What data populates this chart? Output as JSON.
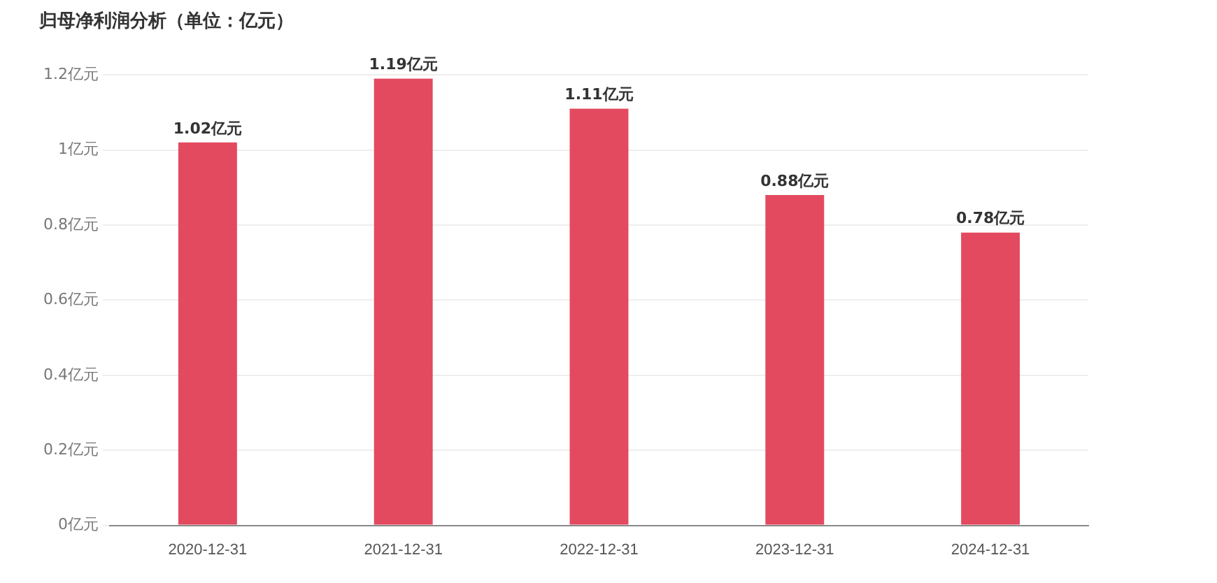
{
  "chart_data": {
    "type": "bar",
    "title": "归母净利润分析（单位：亿元）",
    "categories": [
      "2020-12-31",
      "2021-12-31",
      "2022-12-31",
      "2023-12-31",
      "2024-12-31"
    ],
    "values": [
      1.02,
      1.19,
      1.11,
      0.88,
      0.78
    ],
    "value_labels": [
      "1.02亿元",
      "1.19亿元",
      "1.11亿元",
      "0.88亿元",
      "0.78亿元"
    ],
    "color": "#e34a5f",
    "ylim": [
      0,
      1.2
    ],
    "yticks": [
      {
        "value": 0,
        "label": "0亿元"
      },
      {
        "value": 0.2,
        "label": "0.2亿元"
      },
      {
        "value": 0.4,
        "label": "0.4亿元"
      },
      {
        "value": 0.6,
        "label": "0.6亿元"
      },
      {
        "value": 0.8,
        "label": "0.8亿元"
      },
      {
        "value": 1,
        "label": "1亿元"
      },
      {
        "value": 1.2,
        "label": "1.2亿元"
      }
    ],
    "grid": "y",
    "legend": false
  }
}
